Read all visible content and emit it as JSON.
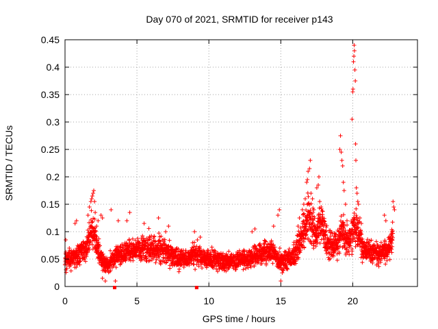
{
  "chart_data": {
    "type": "scatter",
    "title": "Day 070 of 2021, SRMTID for receiver p143",
    "xlabel": "GPS time / hours",
    "ylabel": "SRMTID / TECUs",
    "xlim": [
      0,
      24.5
    ],
    "ylim": [
      0,
      0.45
    ],
    "x_ticks": [
      0,
      5,
      10,
      15,
      20
    ],
    "x_tick_labels": [
      "0",
      "5",
      "10",
      "15",
      "20"
    ],
    "y_ticks": [
      0,
      0.05,
      0.1,
      0.15,
      0.2,
      0.25,
      0.3,
      0.35,
      0.4,
      0.45
    ],
    "y_tick_labels": [
      "0",
      "0.05",
      "0.1",
      "0.15",
      "0.2",
      "0.25",
      "0.3",
      "0.35",
      "0.4",
      "0.45"
    ],
    "grid": true,
    "marker": "+",
    "color": "#ff0000",
    "series": [
      {
        "name": "SRMTID",
        "profile": {
          "x": [
            0,
            0.5,
            1,
            1.5,
            1.8,
            2,
            2.3,
            2.6,
            3,
            3.5,
            4,
            4.5,
            5,
            5.5,
            6,
            6.5,
            7,
            7.5,
            8,
            8.5,
            9,
            9.5,
            10,
            10.5,
            11,
            11.5,
            12,
            12.5,
            13,
            13.5,
            14,
            14.5,
            15,
            15.5,
            16,
            16.3,
            16.6,
            16.9,
            17.2,
            17.5,
            17.8,
            18.2,
            18.6,
            19,
            19.3,
            19.6,
            19.9,
            20.1,
            20.4,
            20.7,
            21,
            21.5,
            22,
            22.5,
            22.8
          ],
          "y": [
            0.045,
            0.05,
            0.06,
            0.07,
            0.1,
            0.1,
            0.065,
            0.045,
            0.04,
            0.055,
            0.06,
            0.065,
            0.065,
            0.07,
            0.07,
            0.07,
            0.065,
            0.055,
            0.05,
            0.05,
            0.06,
            0.05,
            0.05,
            0.05,
            0.045,
            0.045,
            0.05,
            0.05,
            0.055,
            0.06,
            0.06,
            0.065,
            0.045,
            0.05,
            0.06,
            0.08,
            0.1,
            0.13,
            0.1,
            0.1,
            0.12,
            0.08,
            0.07,
            0.08,
            0.1,
            0.08,
            0.09,
            0.11,
            0.1,
            0.07,
            0.065,
            0.06,
            0.06,
            0.07,
            0.09
          ]
        },
        "points": [
          [
            0.05,
            0.085
          ],
          [
            0.3,
            0.07
          ],
          [
            0.7,
            0.115
          ],
          [
            0.8,
            0.12
          ],
          [
            1.6,
            0.13
          ],
          [
            1.7,
            0.145
          ],
          [
            1.8,
            0.155
          ],
          [
            1.85,
            0.16
          ],
          [
            1.9,
            0.165
          ],
          [
            1.95,
            0.17
          ],
          [
            2.0,
            0.175
          ],
          [
            2.05,
            0.155
          ],
          [
            2.1,
            0.135
          ],
          [
            2.2,
            0.11
          ],
          [
            2.5,
            0.13
          ],
          [
            2.6,
            0.125
          ],
          [
            2.3,
            0.12
          ],
          [
            2.6,
            0.015
          ],
          [
            2.8,
            0.01
          ],
          [
            3.2,
            0.14
          ],
          [
            3.5,
            0.01
          ],
          [
            3.7,
            0.12
          ],
          [
            4.3,
            0.12
          ],
          [
            4.5,
            0.135
          ],
          [
            5.5,
            0.115
          ],
          [
            6.5,
            0.125
          ],
          [
            7.0,
            0.1
          ],
          [
            7.2,
            0.11
          ],
          [
            9.0,
            0.1
          ],
          [
            9.2,
            0.085
          ],
          [
            9.4,
            0.09
          ],
          [
            13.0,
            0.1
          ],
          [
            13.2,
            0.105
          ],
          [
            14.5,
            0.11
          ],
          [
            14.8,
            0.13
          ],
          [
            14.9,
            0.14
          ],
          [
            15.0,
            0.01
          ],
          [
            15.1,
            0.025
          ],
          [
            16.2,
            0.11
          ],
          [
            16.3,
            0.125
          ],
          [
            16.5,
            0.14
          ],
          [
            16.6,
            0.15
          ],
          [
            16.7,
            0.16
          ],
          [
            16.8,
            0.19
          ],
          [
            16.85,
            0.195
          ],
          [
            16.9,
            0.21
          ],
          [
            17.0,
            0.215
          ],
          [
            17.05,
            0.23
          ],
          [
            17.1,
            0.17
          ],
          [
            17.2,
            0.16
          ],
          [
            17.3,
            0.14
          ],
          [
            17.5,
            0.18
          ],
          [
            17.6,
            0.185
          ],
          [
            17.65,
            0.2
          ],
          [
            17.7,
            0.155
          ],
          [
            17.8,
            0.145
          ],
          [
            17.9,
            0.125
          ],
          [
            18.0,
            0.12
          ],
          [
            18.1,
            0.1
          ],
          [
            19.1,
            0.25
          ],
          [
            19.15,
            0.275
          ],
          [
            19.2,
            0.245
          ],
          [
            19.25,
            0.23
          ],
          [
            19.3,
            0.22
          ],
          [
            19.35,
            0.19
          ],
          [
            19.4,
            0.175
          ],
          [
            19.5,
            0.15
          ],
          [
            19.6,
            0.12
          ],
          [
            19.95,
            0.305
          ],
          [
            20.0,
            0.355
          ],
          [
            20.02,
            0.36
          ],
          [
            20.05,
            0.41
          ],
          [
            20.08,
            0.42
          ],
          [
            20.1,
            0.44
          ],
          [
            20.12,
            0.43
          ],
          [
            20.15,
            0.395
          ],
          [
            20.18,
            0.375
          ],
          [
            20.2,
            0.26
          ],
          [
            20.22,
            0.23
          ],
          [
            20.25,
            0.18
          ],
          [
            20.3,
            0.17
          ],
          [
            20.35,
            0.155
          ],
          [
            20.4,
            0.15
          ],
          [
            20.5,
            0.125
          ],
          [
            20.6,
            0.115
          ],
          [
            22.2,
            0.13
          ],
          [
            22.3,
            0.12
          ],
          [
            22.8,
            0.155
          ],
          [
            22.85,
            0.145
          ],
          [
            22.9,
            0.14
          ]
        ],
        "count": 3100
      }
    ],
    "axis_markers": [
      3.45,
      9.15
    ]
  }
}
